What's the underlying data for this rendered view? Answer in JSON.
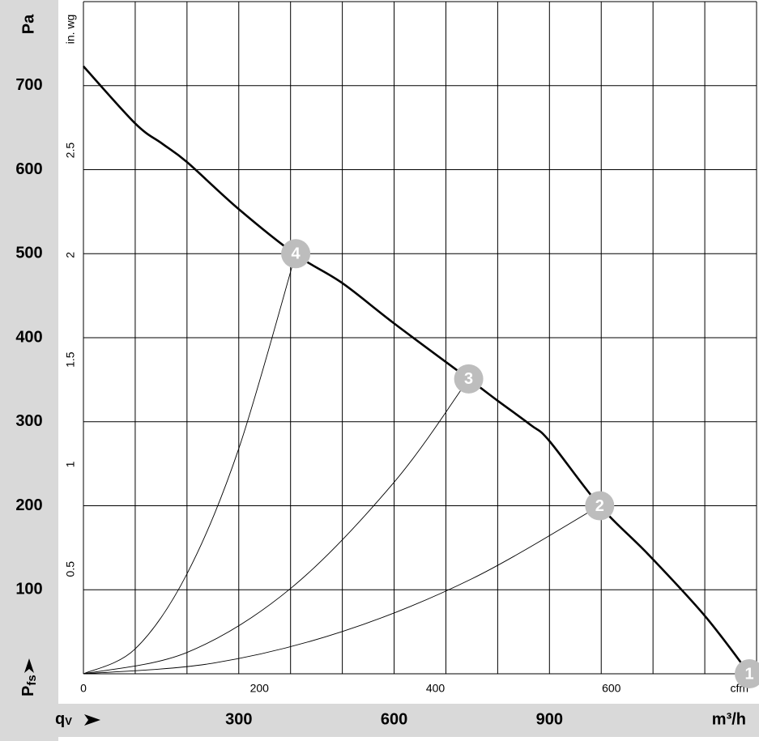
{
  "chart_data": {
    "type": "line",
    "y_unit": "Pa",
    "y2_unit": "in. wg",
    "x_unit": "m³/h",
    "x2_unit": "cfm",
    "y_symbol": "P",
    "y_symbol_sub": "fs",
    "x_symbol": "q",
    "x_symbol_sub": "V",
    "xlim": [
      0,
      1300
    ],
    "ylim": [
      0,
      800
    ],
    "xticks": [
      300,
      600,
      900
    ],
    "yticks": [
      100,
      200,
      300,
      400,
      500,
      600,
      700
    ],
    "xgrid": [
      100,
      200,
      300,
      400,
      500,
      600,
      700,
      800,
      900,
      1000,
      1100,
      1200,
      1300
    ],
    "ygrid": [
      100,
      200,
      300,
      400,
      500,
      600,
      700,
      800
    ],
    "x2lim": [
      0,
      765
    ],
    "x2ticks": [
      0,
      200,
      400,
      600
    ],
    "y2lim": [
      0,
      3.21
    ],
    "y2ticks": [
      0.5,
      1,
      1.5,
      2,
      2.5
    ],
    "series": [
      {
        "color": "#000000",
        "width": 2.6,
        "x": [
          0,
          100,
          152,
          200,
          300,
          410,
          500,
          600,
          744,
          800,
          864,
          900,
          997,
          1091,
          1200,
          1286
        ],
        "values": [
          723,
          655,
          631,
          609,
          553,
          499,
          465,
          417,
          351,
          325,
          296,
          277,
          200,
          142,
          69,
          0
        ]
      },
      {
        "color": "#000000",
        "width": 0.9,
        "x": [
          0,
          100,
          200,
          300,
          410
        ],
        "values": [
          0,
          29.7,
          119,
          268,
          500
        ]
      },
      {
        "color": "#000000",
        "width": 0.9,
        "x": [
          0,
          200,
          400,
          600,
          744
        ],
        "values": [
          0,
          25.4,
          101.5,
          228,
          351
        ]
      },
      {
        "color": "#000000",
        "width": 0.9,
        "x": [
          0,
          250,
          500,
          750,
          997
        ],
        "values": [
          0,
          12.6,
          50.3,
          113,
          200
        ]
      }
    ],
    "operating_points": [
      {
        "label": "1",
        "x": 1286,
        "y": 0
      },
      {
        "label": "2",
        "x": 997,
        "y": 200
      },
      {
        "label": "3",
        "x": 744,
        "y": 351
      },
      {
        "label": "4",
        "x": 410,
        "y": 500
      }
    ],
    "point_color": "#bdbdbd"
  }
}
